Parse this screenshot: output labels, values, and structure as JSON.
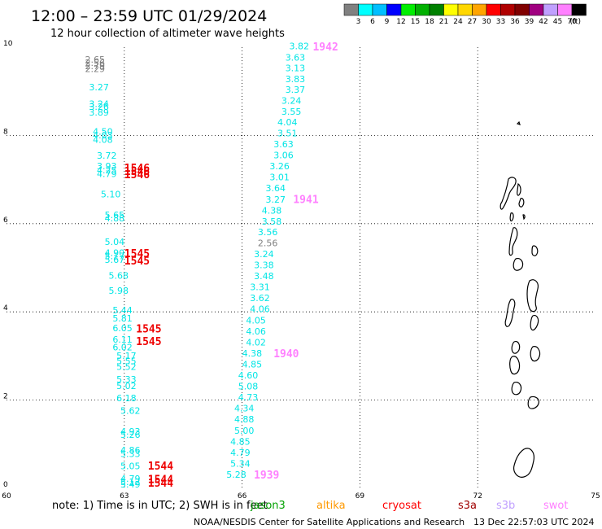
{
  "header": {
    "title": "12:00 – 23:59 UTC 01/29/2024",
    "subtitle": "12 hour collection of altimeter wave heights"
  },
  "legend": {
    "unit": "(ft)",
    "bins": [
      {
        "color": "#808080",
        "label": "3"
      },
      {
        "color": "#00ffff",
        "label": "6"
      },
      {
        "color": "#00bfff",
        "label": "9"
      },
      {
        "color": "#0000ff",
        "label": "12"
      },
      {
        "color": "#00ee00",
        "label": "15"
      },
      {
        "color": "#00b000",
        "label": "18"
      },
      {
        "color": "#008000",
        "label": "21"
      },
      {
        "color": "#ffff00",
        "label": "24"
      },
      {
        "color": "#ffd700",
        "label": "27"
      },
      {
        "color": "#ffa500",
        "label": "30"
      },
      {
        "color": "#ff0000",
        "label": "33"
      },
      {
        "color": "#b00000",
        "label": "36"
      },
      {
        "color": "#800000",
        "label": "39"
      },
      {
        "color": "#a00080",
        "label": "42"
      },
      {
        "color": "#c0a0ff",
        "label": "45"
      },
      {
        "color": "#ff80ff",
        "label": "70"
      },
      {
        "color": "#000000",
        "label": ""
      }
    ]
  },
  "note": {
    "prefix": "note:  1) Time is in UTC; 2) SWH is in feet",
    "satellites": [
      {
        "name": "jason3",
        "color": "#00a000"
      },
      {
        "name": "altika",
        "color": "#ff9900"
      },
      {
        "name": "cryosat",
        "color": "#ff0000"
      },
      {
        "name": "s3a",
        "color": "#a00000"
      },
      {
        "name": "s3b",
        "color": "#c0a0ff"
      },
      {
        "name": "swot",
        "color": "#ff80ff"
      }
    ]
  },
  "footer": {
    "credit": "NOAA/NESDIS Center for Satellite Applications and Research",
    "generated": "13 Dec 22:57:03 UTC 2024"
  },
  "chart_data": {
    "type": "scatter",
    "title": "12:00 – 23:59 UTC 01/29/2024",
    "subtitle": "12 hour collection of altimeter wave heights",
    "xlim": [
      60,
      75
    ],
    "ylim": [
      0,
      10
    ],
    "xticks": [
      60,
      63,
      66,
      69,
      72,
      75
    ],
    "yticks": [
      0,
      2,
      4,
      6,
      8,
      10
    ],
    "grid": true,
    "colors": {
      "cyan": "#00e5e5",
      "gray": "#808080",
      "red": "#ee0000",
      "pink": "#ff80ff"
    },
    "tracks": [
      {
        "name": "cryosat",
        "points": [
          {
            "x": 62.0,
            "y": 9.65,
            "v": "2.65",
            "c": "gray"
          },
          {
            "x": 62.0,
            "y": 9.58,
            "v": "2.56",
            "c": "gray"
          },
          {
            "x": 62.0,
            "y": 9.5,
            "v": "2.79",
            "c": "gray"
          },
          {
            "x": 62.0,
            "y": 9.44,
            "v": "2.29",
            "c": "gray"
          },
          {
            "x": 62.1,
            "y": 9.02,
            "v": "3.27",
            "c": "cyan"
          },
          {
            "x": 62.1,
            "y": 8.64,
            "v": "3.24",
            "c": "cyan"
          },
          {
            "x": 62.1,
            "y": 8.58,
            "v": "3.26",
            "c": "cyan"
          },
          {
            "x": 62.1,
            "y": 8.45,
            "v": "3.89",
            "c": "cyan"
          },
          {
            "x": 62.2,
            "y": 8.02,
            "v": "4.50",
            "c": "cyan"
          },
          {
            "x": 62.2,
            "y": 7.93,
            "v": "4.03",
            "c": "cyan"
          },
          {
            "x": 62.2,
            "y": 7.83,
            "v": "4.08",
            "c": "cyan"
          },
          {
            "x": 62.3,
            "y": 7.47,
            "v": "3.72",
            "c": "cyan"
          },
          {
            "x": 62.3,
            "y": 7.23,
            "v": "3.93",
            "c": "cyan"
          },
          {
            "x": 62.3,
            "y": 7.14,
            "v": "4.25",
            "c": "cyan"
          },
          {
            "x": 62.3,
            "y": 7.06,
            "v": "4.79",
            "c": "cyan"
          },
          {
            "x": 62.4,
            "y": 6.6,
            "v": "5.10",
            "c": "cyan"
          },
          {
            "x": 62.5,
            "y": 6.13,
            "v": "5.65",
            "c": "cyan"
          },
          {
            "x": 62.5,
            "y": 6.05,
            "v": "4.88",
            "c": "cyan"
          },
          {
            "x": 62.5,
            "y": 5.52,
            "v": "5.04",
            "c": "cyan"
          },
          {
            "x": 62.5,
            "y": 5.27,
            "v": "4.90",
            "c": "cyan"
          },
          {
            "x": 62.5,
            "y": 5.19,
            "v": "5.17",
            "c": "cyan"
          },
          {
            "x": 62.5,
            "y": 5.11,
            "v": "5.67",
            "c": "cyan"
          },
          {
            "x": 62.6,
            "y": 4.75,
            "v": "5.68",
            "c": "cyan"
          },
          {
            "x": 62.6,
            "y": 4.41,
            "v": "5.98",
            "c": "cyan"
          },
          {
            "x": 62.7,
            "y": 3.97,
            "v": "5.44",
            "c": "cyan"
          },
          {
            "x": 62.7,
            "y": 3.78,
            "v": "5.81",
            "c": "cyan"
          },
          {
            "x": 62.7,
            "y": 3.56,
            "v": "6.05",
            "c": "cyan"
          },
          {
            "x": 62.7,
            "y": 3.3,
            "v": "6.11",
            "c": "cyan"
          },
          {
            "x": 62.7,
            "y": 3.13,
            "v": "6.02",
            "c": "cyan"
          },
          {
            "x": 62.8,
            "y": 2.93,
            "v": "5.17",
            "c": "cyan"
          },
          {
            "x": 62.8,
            "y": 2.81,
            "v": "5.55",
            "c": "cyan"
          },
          {
            "x": 62.8,
            "y": 2.68,
            "v": "5.52",
            "c": "cyan"
          },
          {
            "x": 62.8,
            "y": 2.4,
            "v": "5.33",
            "c": "cyan"
          },
          {
            "x": 62.8,
            "y": 2.25,
            "v": "5.02",
            "c": "cyan"
          },
          {
            "x": 62.8,
            "y": 1.97,
            "v": "6.18",
            "c": "cyan"
          },
          {
            "x": 62.9,
            "y": 1.69,
            "v": "5.62",
            "c": "cyan"
          },
          {
            "x": 62.9,
            "y": 1.22,
            "v": "4.93",
            "c": "cyan"
          },
          {
            "x": 62.9,
            "y": 1.14,
            "v": "5.26",
            "c": "cyan"
          },
          {
            "x": 62.9,
            "y": 0.79,
            "v": "4.86",
            "c": "cyan"
          },
          {
            "x": 62.9,
            "y": 0.71,
            "v": "5.33",
            "c": "cyan"
          },
          {
            "x": 62.9,
            "y": 0.43,
            "v": "5.05",
            "c": "cyan"
          },
          {
            "x": 62.9,
            "y": 0.15,
            "v": "4.79",
            "c": "cyan"
          },
          {
            "x": 62.9,
            "y": 0.07,
            "v": "5.12",
            "c": "cyan"
          },
          {
            "x": 62.9,
            "y": 0.02,
            "v": "5.49",
            "c": "cyan"
          }
        ],
        "times": [
          {
            "x": 63.0,
            "y": 7.18,
            "t": "1546"
          },
          {
            "x": 63.0,
            "y": 7.1,
            "t": "1546"
          },
          {
            "x": 63.0,
            "y": 7.03,
            "t": "1546"
          },
          {
            "x": 63.0,
            "y": 5.24,
            "t": "1545"
          },
          {
            "x": 63.0,
            "y": 5.07,
            "t": "1545"
          },
          {
            "x": 63.3,
            "y": 3.53,
            "t": "1545"
          },
          {
            "x": 63.3,
            "y": 3.25,
            "t": "1545"
          },
          {
            "x": 63.6,
            "y": 0.42,
            "t": "1544"
          },
          {
            "x": 63.6,
            "y": 0.12,
            "t": "1544"
          },
          {
            "x": 63.6,
            "y": 0.04,
            "t": "1544"
          }
        ]
      },
      {
        "name": "swot",
        "points": [
          {
            "x": 67.2,
            "y": 9.95,
            "v": "3.82",
            "c": "cyan"
          },
          {
            "x": 67.1,
            "y": 9.7,
            "v": "3.63",
            "c": "cyan"
          },
          {
            "x": 67.1,
            "y": 9.46,
            "v": "3.13",
            "c": "cyan"
          },
          {
            "x": 67.1,
            "y": 9.21,
            "v": "3.83",
            "c": "cyan"
          },
          {
            "x": 67.1,
            "y": 8.97,
            "v": "3.37",
            "c": "cyan"
          },
          {
            "x": 67.0,
            "y": 8.72,
            "v": "3.24",
            "c": "cyan"
          },
          {
            "x": 67.0,
            "y": 8.47,
            "v": "3.55",
            "c": "cyan"
          },
          {
            "x": 66.9,
            "y": 8.23,
            "v": "4.04",
            "c": "cyan"
          },
          {
            "x": 66.9,
            "y": 7.98,
            "v": "3.51",
            "c": "cyan"
          },
          {
            "x": 66.8,
            "y": 7.73,
            "v": "3.63",
            "c": "cyan"
          },
          {
            "x": 66.8,
            "y": 7.48,
            "v": "3.06",
            "c": "cyan"
          },
          {
            "x": 66.7,
            "y": 7.23,
            "v": "3.26",
            "c": "cyan"
          },
          {
            "x": 66.7,
            "y": 6.98,
            "v": "3.01",
            "c": "cyan"
          },
          {
            "x": 66.6,
            "y": 6.73,
            "v": "3.64",
            "c": "cyan"
          },
          {
            "x": 66.6,
            "y": 6.48,
            "v": "3.27",
            "c": "cyan"
          },
          {
            "x": 66.5,
            "y": 6.23,
            "v": "4.38",
            "c": "cyan"
          },
          {
            "x": 66.5,
            "y": 5.98,
            "v": "3.58",
            "c": "cyan"
          },
          {
            "x": 66.4,
            "y": 5.74,
            "v": "3.56",
            "c": "cyan"
          },
          {
            "x": 66.4,
            "y": 5.49,
            "v": "2.56",
            "c": "gray"
          },
          {
            "x": 66.3,
            "y": 5.24,
            "v": "3.24",
            "c": "cyan"
          },
          {
            "x": 66.3,
            "y": 4.99,
            "v": "3.38",
            "c": "cyan"
          },
          {
            "x": 66.3,
            "y": 4.74,
            "v": "3.48",
            "c": "cyan"
          },
          {
            "x": 66.2,
            "y": 4.49,
            "v": "3.31",
            "c": "cyan"
          },
          {
            "x": 66.2,
            "y": 4.24,
            "v": "3.62",
            "c": "cyan"
          },
          {
            "x": 66.2,
            "y": 3.99,
            "v": "4.06",
            "c": "cyan"
          },
          {
            "x": 66.1,
            "y": 3.74,
            "v": "4.05",
            "c": "cyan"
          },
          {
            "x": 66.1,
            "y": 3.49,
            "v": "4.06",
            "c": "cyan"
          },
          {
            "x": 66.1,
            "y": 3.24,
            "v": "4.02",
            "c": "cyan"
          },
          {
            "x": 66.0,
            "y": 2.99,
            "v": "4.38",
            "c": "cyan"
          },
          {
            "x": 66.0,
            "y": 2.74,
            "v": "4.85",
            "c": "cyan"
          },
          {
            "x": 65.9,
            "y": 2.49,
            "v": "4.60",
            "c": "cyan"
          },
          {
            "x": 65.9,
            "y": 2.24,
            "v": "5.08",
            "c": "cyan"
          },
          {
            "x": 65.9,
            "y": 1.99,
            "v": "4.73",
            "c": "cyan"
          },
          {
            "x": 65.8,
            "y": 1.74,
            "v": "4.34",
            "c": "cyan"
          },
          {
            "x": 65.8,
            "y": 1.49,
            "v": "4.88",
            "c": "cyan"
          },
          {
            "x": 65.8,
            "y": 1.24,
            "v": "5.00",
            "c": "cyan"
          },
          {
            "x": 65.7,
            "y": 0.99,
            "v": "4.85",
            "c": "cyan"
          },
          {
            "x": 65.7,
            "y": 0.74,
            "v": "4.79",
            "c": "cyan"
          },
          {
            "x": 65.7,
            "y": 0.49,
            "v": "5.34",
            "c": "cyan"
          },
          {
            "x": 65.6,
            "y": 0.24,
            "v": "5.28",
            "c": "cyan"
          }
        ],
        "times": [
          {
            "x": 67.8,
            "y": 9.93,
            "t": "1942"
          },
          {
            "x": 67.3,
            "y": 6.47,
            "t": "1941"
          },
          {
            "x": 66.8,
            "y": 2.97,
            "t": "1940"
          },
          {
            "x": 66.3,
            "y": 0.22,
            "t": "1939"
          }
        ]
      }
    ]
  }
}
